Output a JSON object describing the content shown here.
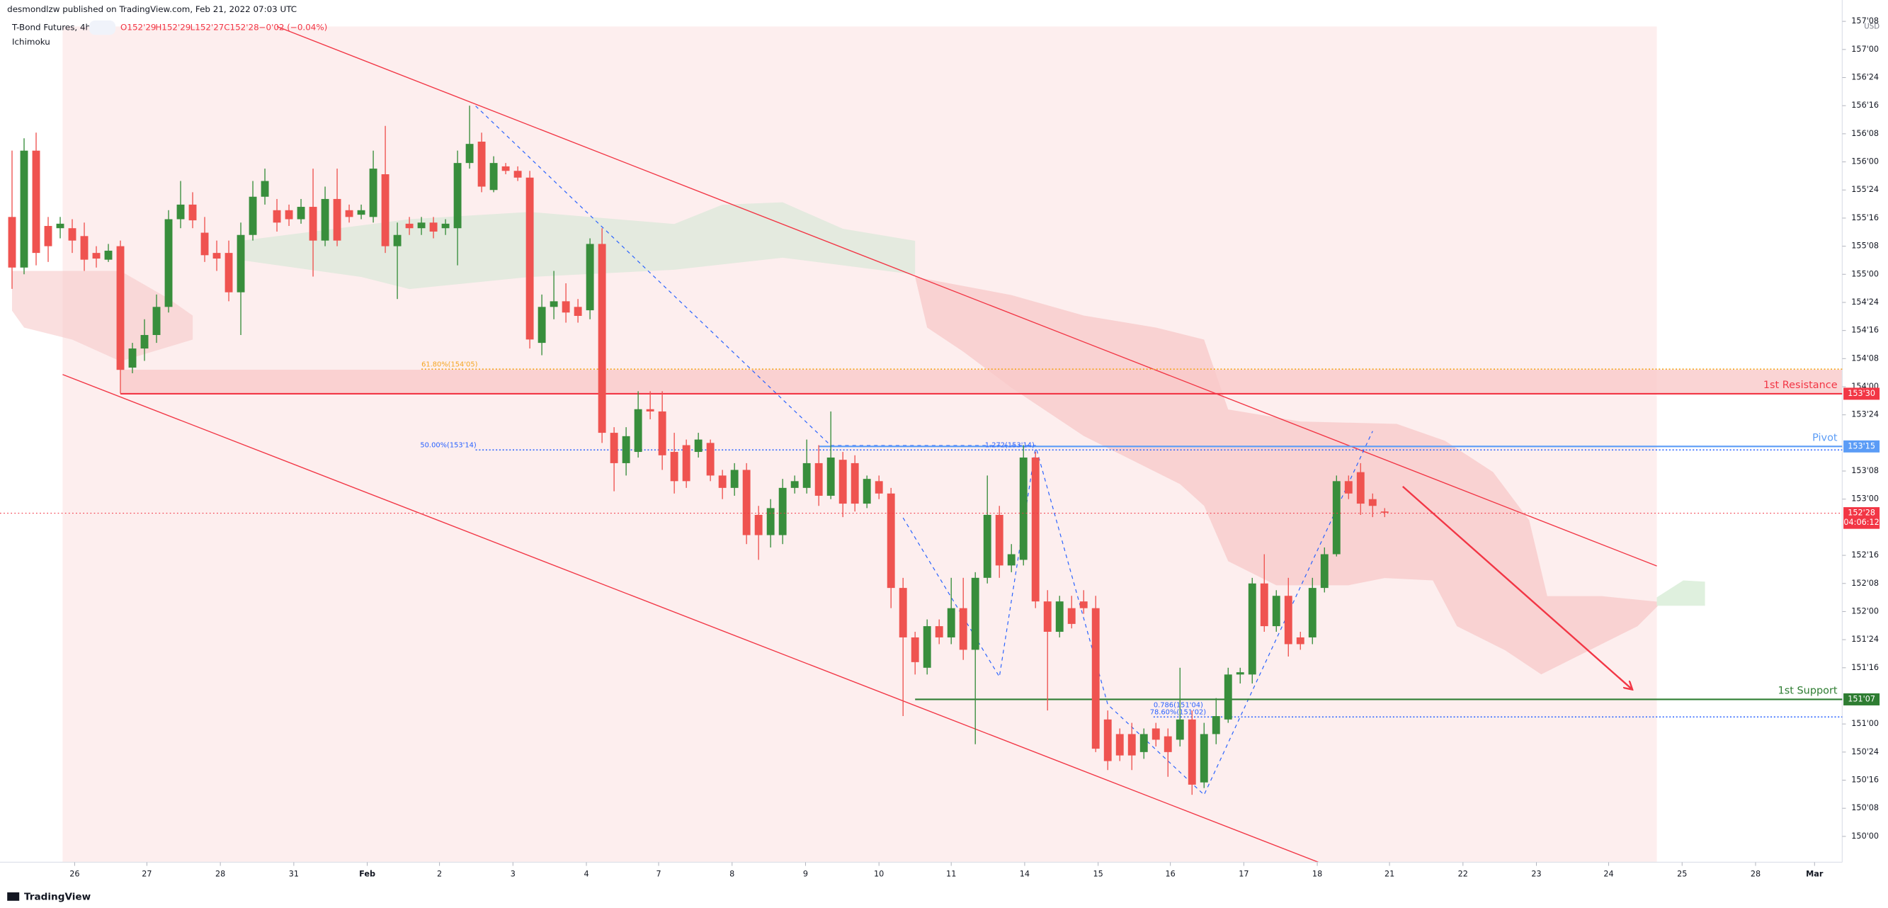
{
  "chart_data": {
    "type": "candlestick",
    "publisher": "desmondlzw published on TradingView.com, Feb 21, 2022 07:03 UTC",
    "title": "T-Bond Futures, 4h,",
    "indicator": "Ichimoku",
    "ohlc": [
      "O152'29",
      "H152'29",
      "L152'27",
      "C152'28",
      "−0'02 (−0.04%)"
    ],
    "currency": "USD",
    "footer": "TradingView",
    "up_color": "#388e3c",
    "down_color": "#ef5350",
    "grid": false,
    "xlim": [
      -1,
      152
    ],
    "ylim": [
      149.77,
      157.44
    ],
    "xticks": [
      {
        "value": 5.2,
        "label": "26"
      },
      {
        "value": 11.2,
        "label": "27"
      },
      {
        "value": 17.3,
        "label": "28"
      },
      {
        "value": 23.4,
        "label": "31"
      },
      {
        "value": 29.5,
        "label": "Feb"
      },
      {
        "value": 35.5,
        "label": "2"
      },
      {
        "value": 41.6,
        "label": "3"
      },
      {
        "value": 47.7,
        "label": "4"
      },
      {
        "value": 53.7,
        "label": "7"
      },
      {
        "value": 59.8,
        "label": "8"
      },
      {
        "value": 65.9,
        "label": "9"
      },
      {
        "value": 72.0,
        "label": "10"
      },
      {
        "value": 78.0,
        "label": "11"
      },
      {
        "value": 84.1,
        "label": "14"
      },
      {
        "value": 90.2,
        "label": "15"
      },
      {
        "value": 96.2,
        "label": "16"
      },
      {
        "value": 102.3,
        "label": "17"
      },
      {
        "value": 108.4,
        "label": "18"
      },
      {
        "value": 114.4,
        "label": "21"
      },
      {
        "value": 120.5,
        "label": "22"
      },
      {
        "value": 126.6,
        "label": "23"
      },
      {
        "value": 132.6,
        "label": "24"
      },
      {
        "value": 138.7,
        "label": "25"
      },
      {
        "value": 144.8,
        "label": "28"
      },
      {
        "value": 149.7,
        "label": "Mar"
      }
    ],
    "yticks": [
      {
        "value": 157.25,
        "label": "157'08"
      },
      {
        "value": 157,
        "label": "157'00"
      },
      {
        "value": 156.75,
        "label": "156'24"
      },
      {
        "value": 156.5,
        "label": "156'16"
      },
      {
        "value": 156.25,
        "label": "156'08"
      },
      {
        "value": 156,
        "label": "156'00"
      },
      {
        "value": 155.75,
        "label": "155'24"
      },
      {
        "value": 155.5,
        "label": "155'16"
      },
      {
        "value": 155.25,
        "label": "155'08"
      },
      {
        "value": 155,
        "label": "155'00"
      },
      {
        "value": 154.75,
        "label": "154'24"
      },
      {
        "value": 154.5,
        "label": "154'16"
      },
      {
        "value": 154.25,
        "label": "154'08"
      },
      {
        "value": 154,
        "label": "154'00"
      },
      {
        "value": 153.75,
        "label": "153'24"
      },
      {
        "value": 153.25,
        "label": "153'08"
      },
      {
        "value": 153,
        "label": "153'00"
      },
      {
        "value": 152.5,
        "label": "152'16"
      },
      {
        "value": 152.25,
        "label": "152'08"
      },
      {
        "value": 152,
        "label": "152'00"
      },
      {
        "value": 151.75,
        "label": "151'24"
      },
      {
        "value": 151.5,
        "label": "151'16"
      },
      {
        "value": 151,
        "label": "151'00"
      },
      {
        "value": 150.75,
        "label": "150'24"
      },
      {
        "value": 150.5,
        "label": "150'16"
      },
      {
        "value": 150.25,
        "label": "150'08"
      },
      {
        "value": 150,
        "label": "150'00"
      }
    ],
    "x": [
      0,
      1,
      2,
      3,
      4,
      5,
      6,
      7,
      8,
      9,
      10,
      11,
      12,
      13,
      14,
      15,
      16,
      17,
      18,
      19,
      20,
      21,
      22,
      23,
      24,
      25,
      26,
      27,
      28,
      29,
      30,
      31,
      32,
      33,
      34,
      35,
      36,
      37,
      38,
      39,
      40,
      41,
      42,
      43,
      44,
      45,
      46,
      47,
      48,
      49,
      50,
      51,
      52,
      53,
      54,
      55,
      56,
      57,
      58,
      59,
      60,
      61,
      62,
      63,
      64,
      65,
      66,
      67,
      68,
      69,
      70,
      71,
      72,
      73,
      74,
      75,
      76,
      77,
      78,
      79,
      80,
      81,
      82,
      83,
      84,
      85,
      86,
      87,
      88,
      89,
      90,
      91,
      92,
      93,
      94,
      95,
      96,
      97,
      98,
      99,
      100,
      101,
      102,
      103,
      104,
      105,
      106,
      107,
      108,
      109,
      110,
      111,
      112,
      113,
      114
    ],
    "open": [
      155.51,
      155.06,
      156.1,
      155.43,
      155.41,
      155.41,
      155.34,
      155.19,
      155.13,
      155.25,
      154.17,
      154.34,
      154.46,
      154.71,
      155.49,
      155.62,
      155.37,
      155.19,
      155.19,
      154.84,
      155.35,
      155.69,
      155.57,
      155.57,
      155.49,
      155.6,
      155.3,
      155.67,
      155.57,
      155.53,
      155.51,
      155.89,
      155.25,
      155.45,
      155.41,
      155.46,
      155.41,
      155.41,
      155.99,
      156.18,
      155.75,
      155.96,
      155.92,
      155.86,
      154.39,
      154.71,
      154.76,
      154.71,
      154.68,
      155.27,
      153.59,
      153.32,
      153.42,
      153.8,
      153.78,
      153.42,
      153.48,
      153.42,
      153.5,
      153.21,
      153.1,
      153.26,
      152.86,
      152.68,
      152.68,
      153.1,
      153.1,
      153.32,
      153.03,
      153.35,
      153.32,
      152.96,
      153.16,
      153.05,
      152.21,
      151.77,
      151.5,
      151.87,
      151.77,
      152.03,
      151.66,
      152.3,
      152.86,
      152.41,
      152.46,
      153.37,
      152.09,
      151.82,
      152.03,
      152.09,
      152.03,
      151.04,
      150.91,
      150.91,
      150.75,
      150.96,
      150.89,
      150.86,
      151.04,
      150.48,
      150.91,
      151.04,
      151.44,
      151.44,
      152.25,
      151.87,
      152.14,
      151.77,
      151.77,
      152.21,
      152.51,
      153.16,
      153.24,
      153.0,
      152.89
    ],
    "high": [
      156.1,
      156.21,
      156.26,
      155.51,
      155.51,
      155.49,
      155.46,
      155.25,
      155.27,
      155.3,
      154.39,
      154.6,
      154.82,
      155.57,
      155.83,
      155.73,
      155.51,
      155.3,
      155.3,
      155.46,
      155.83,
      155.94,
      155.67,
      155.62,
      155.67,
      155.94,
      155.78,
      155.94,
      155.62,
      155.62,
      156.1,
      156.32,
      155.46,
      155.51,
      155.51,
      155.51,
      155.49,
      156.1,
      156.5,
      156.26,
      156.05,
      155.99,
      155.96,
      155.92,
      154.82,
      155.03,
      154.92,
      154.78,
      155.32,
      155.41,
      153.64,
      153.64,
      153.96,
      153.96,
      153.96,
      153.59,
      153.53,
      153.59,
      153.53,
      153.26,
      153.32,
      153.32,
      152.94,
      153.0,
      153.18,
      153.21,
      153.53,
      153.48,
      153.78,
      153.42,
      153.39,
      153.21,
      153.21,
      153.1,
      152.3,
      151.82,
      151.93,
      151.93,
      152.3,
      152.3,
      152.35,
      153.21,
      152.94,
      152.6,
      153.48,
      153.42,
      152.19,
      152.14,
      152.14,
      152.19,
      152.14,
      151.12,
      150.96,
      151.01,
      150.96,
      151.01,
      150.96,
      151.5,
      151.12,
      151.01,
      151.23,
      151.5,
      151.5,
      152.3,
      152.51,
      152.19,
      152.3,
      151.82,
      152.3,
      152.57,
      153.21,
      153.21,
      153.32,
      153.05,
      152.92
    ],
    "low": [
      154.87,
      155.0,
      155.08,
      155.11,
      155.32,
      155.19,
      155.03,
      155.06,
      155.11,
      153.94,
      154.12,
      154.23,
      154.39,
      154.66,
      155.41,
      155.41,
      155.11,
      155.03,
      154.76,
      154.46,
      155.3,
      155.62,
      155.38,
      155.43,
      155.45,
      154.98,
      155.25,
      155.25,
      155.46,
      155.49,
      155.46,
      155.19,
      154.78,
      155.35,
      155.35,
      155.32,
      155.35,
      155.08,
      155.94,
      155.73,
      155.73,
      155.89,
      155.83,
      154.34,
      154.28,
      154.6,
      154.57,
      154.57,
      154.6,
      153.5,
      153.07,
      153.21,
      153.37,
      153.71,
      153.26,
      153.05,
      153.1,
      153.37,
      153.16,
      153.0,
      153.03,
      152.6,
      152.46,
      152.57,
      152.6,
      153.05,
      153.05,
      152.94,
      153.0,
      152.84,
      152.89,
      152.92,
      153.0,
      152.03,
      151.07,
      151.44,
      151.44,
      151.71,
      151.71,
      151.57,
      150.82,
      152.25,
      152.3,
      152.35,
      152.41,
      152.03,
      151.12,
      151.77,
      151.85,
      151.98,
      150.75,
      150.59,
      150.67,
      150.59,
      150.69,
      150.8,
      150.53,
      150.8,
      150.37,
      150.43,
      150.82,
      151.01,
      151.36,
      151.36,
      151.82,
      151.82,
      151.6,
      151.66,
      151.71,
      152.17,
      152.49,
      153.0,
      152.86,
      152.84,
      152.84
    ],
    "close": [
      155.06,
      156.1,
      155.19,
      155.25,
      155.45,
      155.3,
      155.13,
      155.14,
      155.21,
      154.15,
      154.34,
      154.46,
      154.71,
      155.49,
      155.62,
      155.48,
      155.17,
      155.14,
      154.84,
      155.35,
      155.69,
      155.83,
      155.46,
      155.49,
      155.6,
      155.3,
      155.67,
      155.3,
      155.51,
      155.57,
      155.94,
      155.25,
      155.35,
      155.41,
      155.46,
      155.38,
      155.45,
      155.99,
      156.16,
      155.78,
      155.99,
      155.92,
      155.86,
      154.42,
      154.71,
      154.76,
      154.66,
      154.63,
      155.27,
      153.59,
      153.32,
      153.56,
      153.8,
      153.78,
      153.39,
      153.16,
      153.16,
      153.53,
      153.21,
      153.1,
      153.26,
      152.68,
      152.68,
      152.92,
      153.1,
      153.16,
      153.32,
      153.03,
      153.37,
      152.96,
      152.96,
      153.18,
      153.05,
      152.21,
      151.77,
      151.55,
      151.87,
      151.77,
      152.03,
      151.66,
      152.3,
      152.86,
      152.41,
      152.51,
      153.37,
      152.09,
      151.82,
      152.09,
      151.89,
      152.03,
      150.78,
      150.67,
      150.72,
      150.72,
      150.91,
      150.86,
      150.75,
      151.04,
      150.46,
      150.91,
      151.07,
      151.44,
      151.46,
      152.25,
      151.87,
      152.14,
      151.71,
      151.71,
      152.21,
      152.51,
      153.16,
      153.05,
      152.96,
      152.94,
      152.88
    ],
    "levels": [
      {
        "name": "1st Resistance",
        "value": 153.9375,
        "value_label": "153'30",
        "color": "#f23645"
      },
      {
        "name": "Pivot",
        "value": 153.46875,
        "value_label": "153'15",
        "color": "#5b9cf6"
      },
      {
        "name": "1st Support",
        "value": 151.21875,
        "value_label": "151'07",
        "color": "#2e7d32"
      }
    ],
    "fib_levels": [
      {
        "label": "61.80%(154'05)",
        "value": 154.15625,
        "color": "#f5a623"
      },
      {
        "label": "50.00%(153'14)",
        "value": 153.4375,
        "color": "#2962ff"
      },
      {
        "label": "1.272(153'14)",
        "value": 153.4375,
        "color": "#2962ff"
      },
      {
        "label": "0.786(151'04)",
        "value": 151.125,
        "color": "#2962ff"
      },
      {
        "label": "78.60%(151'02)",
        "value": 151.0625,
        "color": "#2962ff"
      }
    ],
    "last_price": 152.875,
    "last_price_label": "152'28",
    "countdown": "04:06:12"
  }
}
